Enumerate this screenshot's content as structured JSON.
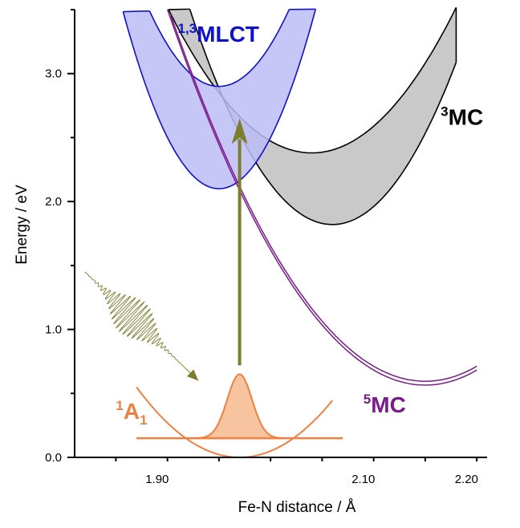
{
  "chart_data": {
    "type": "line",
    "title": "",
    "xlabel": "Fe-N distance / Å",
    "ylabel": "Energy / eV",
    "xlim": [
      1.82,
      2.22
    ],
    "ylim": [
      0.0,
      3.5
    ],
    "x_ticks": [
      {
        "value": 1.9,
        "label": "1.90"
      },
      {
        "value": 2.1,
        "label": "2.10"
      },
      {
        "value": 2.2,
        "label": "2.20"
      }
    ],
    "y_ticks": [
      {
        "value": 0.0,
        "label": "0.0"
      },
      {
        "value": 1.0,
        "label": "1.0"
      },
      {
        "value": 2.0,
        "label": "2.0"
      },
      {
        "value": 3.0,
        "label": "3.0"
      }
    ],
    "grid": false,
    "colors": {
      "mlct": "#1010d0",
      "mlct_fill": "#bcbcf6",
      "mc3": "#000000",
      "mc3_fill": "#c0c0c0",
      "mc5": "#7a1a8c",
      "a1": "#f08040",
      "a1_fill": "#f8c4a0",
      "arrow": "#7d7d2e"
    },
    "series": [
      {
        "name": "1,3MLCT",
        "type": "band",
        "lower": {
          "x0": 1.96,
          "y0": 2.1,
          "k": 160,
          "xmin": 1.86,
          "xmax": 2.07
        },
        "upper": {
          "x0": 1.96,
          "y0": 2.9,
          "k": 130,
          "xmin": 1.86,
          "xmax": 2.07
        }
      },
      {
        "name": "3MC",
        "type": "band",
        "lower": {
          "x0": 2.07,
          "y0": 1.82,
          "k": 88,
          "xmin": 1.88,
          "xmax": 2.19
        },
        "upper": {
          "x0": 2.05,
          "y0": 2.38,
          "k": 58,
          "xmin": 1.88,
          "xmax": 2.19
        }
      },
      {
        "name": "5MC",
        "type": "double-line",
        "curve": {
          "x0": 2.16,
          "y0": 0.58,
          "k": 47,
          "xmin": 1.91,
          "xmax": 2.21
        }
      },
      {
        "name": "1A1",
        "type": "parabola",
        "curve": {
          "x0": 1.98,
          "y0": 0.0,
          "k": 55,
          "xmin": 1.88,
          "xmax": 2.07
        },
        "wavepacket": {
          "center": 1.98,
          "height": 0.65,
          "base": 0.15,
          "width": 0.012,
          "xmin": 1.937,
          "xmax": 2.023,
          "line_xmin": 1.88,
          "line_xmax": 2.08
        }
      }
    ],
    "annotations": [
      {
        "name": "mlct-label",
        "sup": "1,3",
        "text": "MLCT",
        "x": 1.92,
        "y": 3.25,
        "color": "mlct"
      },
      {
        "name": "mc3-label",
        "sup": "3",
        "text": "MC",
        "x": 2.175,
        "y": 2.6,
        "color": "mc3"
      },
      {
        "name": "mc5-label",
        "sup": "5",
        "text": "MC",
        "x": 2.1,
        "y": 0.35,
        "color": "mc5"
      },
      {
        "name": "a1-label",
        "sup": "1",
        "text": "A",
        "sub": "1",
        "x": 1.86,
        "y": 0.3,
        "color": "a1"
      }
    ],
    "excitation_arrow": {
      "x": 1.98,
      "y_from": 0.72,
      "y_to": 2.65
    },
    "light_pulse": {
      "x_start": 1.83,
      "y_start": 1.45,
      "x_end": 1.94,
      "y_end": 0.6
    }
  }
}
